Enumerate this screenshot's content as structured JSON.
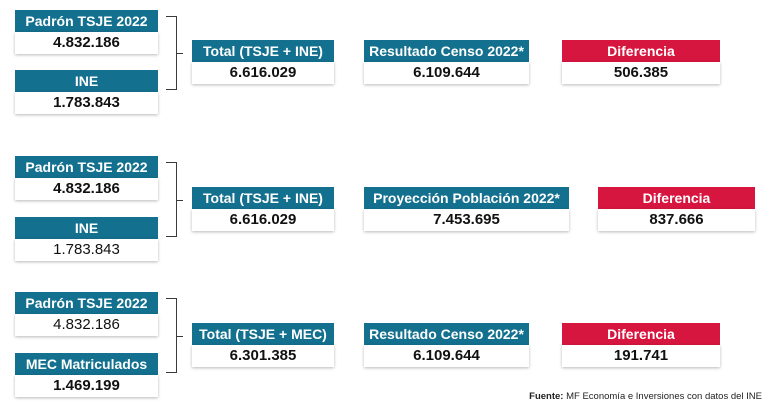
{
  "rows": [
    {
      "left_top": {
        "label": "Padrón TSJE 2022",
        "value": "4.832.186",
        "bold": true
      },
      "left_bottom": {
        "label": "INE",
        "value": "1.783.843",
        "bold": true
      },
      "total": {
        "label": "Total (TSJE + INE)",
        "value": "6.616.029"
      },
      "compare": {
        "label": "Resultado Censo 2022*",
        "value": "6.109.644"
      },
      "difference": {
        "label": "Diferencia",
        "value": "506.385"
      }
    },
    {
      "left_top": {
        "label": "Padrón TSJE 2022",
        "value": "4.832.186",
        "bold": true
      },
      "left_bottom": {
        "label": "INE",
        "value": "1.783.843",
        "bold": false
      },
      "total": {
        "label": "Total (TSJE + INE)",
        "value": "6.616.029"
      },
      "compare": {
        "label": "Proyección Población 2022*",
        "value": "7.453.695"
      },
      "difference": {
        "label": "Diferencia",
        "value": "837.666"
      }
    },
    {
      "left_top": {
        "label": "Padrón TSJE 2022",
        "value": "4.832.186",
        "bold": false
      },
      "left_bottom": {
        "label": "MEC Matriculados",
        "value": "1.469.199",
        "bold": true
      },
      "total": {
        "label": "Total (TSJE + MEC)",
        "value": "6.301.385"
      },
      "compare": {
        "label": "Resultado Censo 2022*",
        "value": "6.109.644"
      },
      "difference": {
        "label": "Diferencia",
        "value": "191.741"
      }
    }
  ],
  "source": {
    "prefix": "Fuente:",
    "text": " MF Economía e Inversiones con datos del INE"
  },
  "colors": {
    "header_blue": "#13708e",
    "header_red": "#d6163f"
  }
}
